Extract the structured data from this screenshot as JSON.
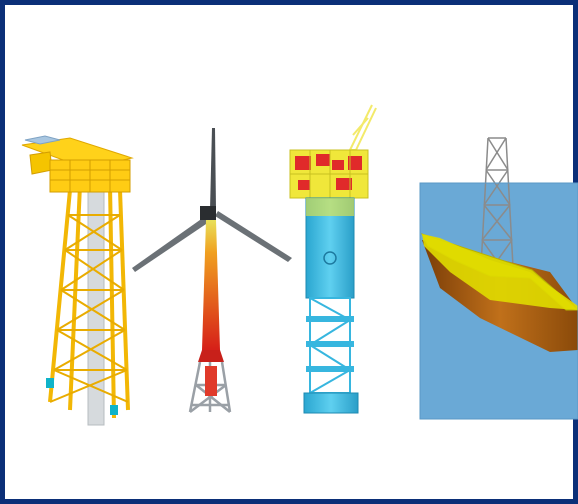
{
  "figure": {
    "frame_color": "#0b2f78",
    "background": "#ffffff",
    "panels": [
      {
        "id": "jacket-platform",
        "colors": {
          "structure": "#f2b705",
          "deck": "#ffd21a",
          "legs": "#d6dadd",
          "accent": "#0fb3c9"
        }
      },
      {
        "id": "wind-turbine",
        "colors": {
          "tower_top": "#e8e05a",
          "tower_mid": "#f0901c",
          "tower_bottom": "#d61f18",
          "blades": "#6b7176",
          "foundation": "#9aa0a6"
        }
      },
      {
        "id": "spar-platform",
        "colors": {
          "hull": "#37b6df",
          "topside": "#f0e73a",
          "modules": "#e02a2a",
          "crane": "#f3ea6a"
        }
      },
      {
        "id": "fpso-vessel",
        "colors": {
          "water": "#6aa9d6",
          "deck": "#d9d400",
          "hull": "#a85a12",
          "derrick": "#8b8b8b"
        }
      }
    ]
  }
}
